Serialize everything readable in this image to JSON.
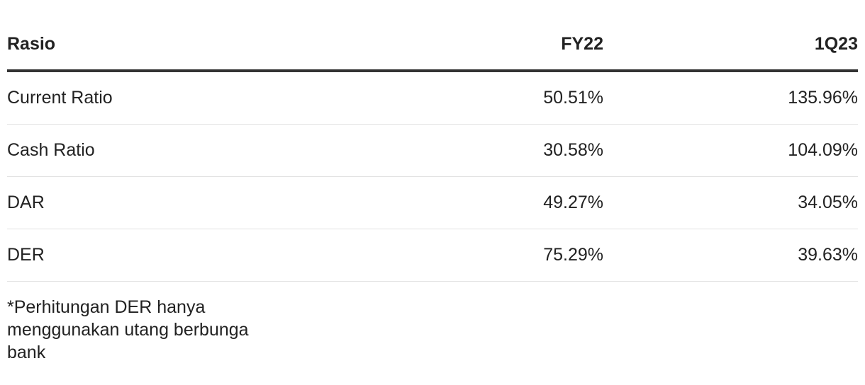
{
  "table": {
    "header": [
      "Rasio",
      "FY22",
      "1Q23"
    ],
    "rows": [
      [
        "Current Ratio",
        "50.51%",
        "135.96%"
      ],
      [
        "Cash Ratio",
        "30.58%",
        "104.09%"
      ],
      [
        "DAR",
        "49.27%",
        "34.05%"
      ],
      [
        "DER",
        "75.29%",
        "39.63%"
      ]
    ]
  },
  "footnote": "*Perhitungan DER hanya menggunakan utang berbunga bank"
}
